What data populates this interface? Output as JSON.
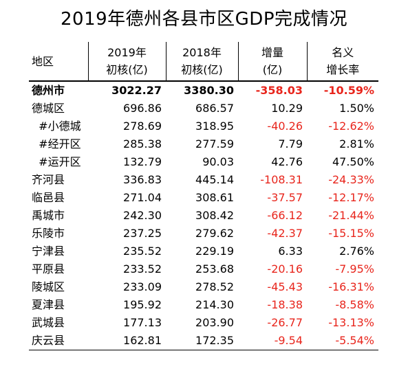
{
  "title": "2019年德州各县市区GDP完成情况",
  "headers": {
    "region": "地区",
    "gdp2019_l1": "2019年",
    "gdp2019_l2": "初核(亿)",
    "gdp2018_l1": "2018年",
    "gdp2018_l2": "初核(亿)",
    "increase_l1": "增量",
    "increase_l2": "(亿)",
    "growth_l1": "名义",
    "growth_l2": "增长率"
  },
  "colors": {
    "negative": "#e8251c",
    "text": "#000000"
  },
  "rows": [
    {
      "name": "德州市",
      "gdp2019": "3022.27",
      "gdp2018": "3380.30",
      "increase": "-358.03",
      "growth": "-10.59%",
      "bold": true
    },
    {
      "name": "德城区",
      "gdp2019": "696.86",
      "gdp2018": "686.57",
      "increase": "10.29",
      "growth": "1.50%"
    },
    {
      "name": "  #小德城",
      "gdp2019": "278.69",
      "gdp2018": "318.95",
      "increase": "-40.26",
      "growth": "-12.62%"
    },
    {
      "name": "  #经开区",
      "gdp2019": "285.38",
      "gdp2018": "277.59",
      "increase": "7.79",
      "growth": "2.81%"
    },
    {
      "name": "  #运开区",
      "gdp2019": "132.79",
      "gdp2018": "90.03",
      "increase": "42.76",
      "growth": "47.50%"
    },
    {
      "name": "齐河县",
      "gdp2019": "336.83",
      "gdp2018": "445.14",
      "increase": "-108.31",
      "growth": "-24.33%"
    },
    {
      "name": "临邑县",
      "gdp2019": "271.04",
      "gdp2018": "308.61",
      "increase": "-37.57",
      "growth": "-12.17%"
    },
    {
      "name": "禹城市",
      "gdp2019": "242.30",
      "gdp2018": "308.42",
      "increase": "-66.12",
      "growth": "-21.44%"
    },
    {
      "name": "乐陵市",
      "gdp2019": "237.25",
      "gdp2018": "279.62",
      "increase": "-42.37",
      "growth": "-15.15%"
    },
    {
      "name": "宁津县",
      "gdp2019": "235.52",
      "gdp2018": "229.19",
      "increase": "6.33",
      "growth": "2.76%"
    },
    {
      "name": "平原县",
      "gdp2019": "233.52",
      "gdp2018": "253.68",
      "increase": "-20.16",
      "growth": "-7.95%"
    },
    {
      "name": "陵城区",
      "gdp2019": "233.09",
      "gdp2018": "278.52",
      "increase": "-45.43",
      "growth": "-16.31%"
    },
    {
      "name": "夏津县",
      "gdp2019": "195.92",
      "gdp2018": "214.30",
      "increase": "-18.38",
      "growth": "-8.58%"
    },
    {
      "name": "武城县",
      "gdp2019": "177.13",
      "gdp2018": "203.90",
      "increase": "-26.77",
      "growth": "-13.13%"
    },
    {
      "name": "庆云县",
      "gdp2019": "162.81",
      "gdp2018": "172.35",
      "increase": "-9.54",
      "growth": "-5.54%"
    }
  ]
}
